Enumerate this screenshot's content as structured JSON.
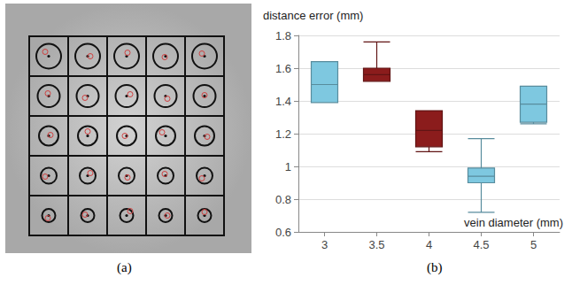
{
  "chart_data": {
    "type": "boxplot",
    "y_label": "distance error (mm)",
    "x_label": "vein diameter (mm)",
    "categories": [
      "3",
      "3.5",
      "4",
      "4.5",
      "5"
    ],
    "values": [
      [
        1.39,
        1.39,
        1.5,
        1.64,
        1.64
      ],
      [
        1.52,
        1.52,
        1.56,
        1.6,
        1.76
      ],
      [
        1.09,
        1.12,
        1.22,
        1.34,
        1.34
      ],
      [
        0.72,
        0.9,
        0.94,
        0.99,
        1.17
      ],
      [
        1.26,
        1.27,
        1.38,
        1.49,
        1.49
      ]
    ],
    "colors": [
      "#7ec8e0",
      "#8b1c1c",
      "#8b1c1c",
      "#7ec8e0",
      "#7ec8e0"
    ],
    "ylim": [
      0.6,
      1.8
    ],
    "yticks": [
      0.6,
      0.8,
      1,
      1.2,
      1.4,
      1.6,
      1.8
    ],
    "grid": true
  },
  "panel_labels": [
    "(a)",
    "(b)"
  ]
}
